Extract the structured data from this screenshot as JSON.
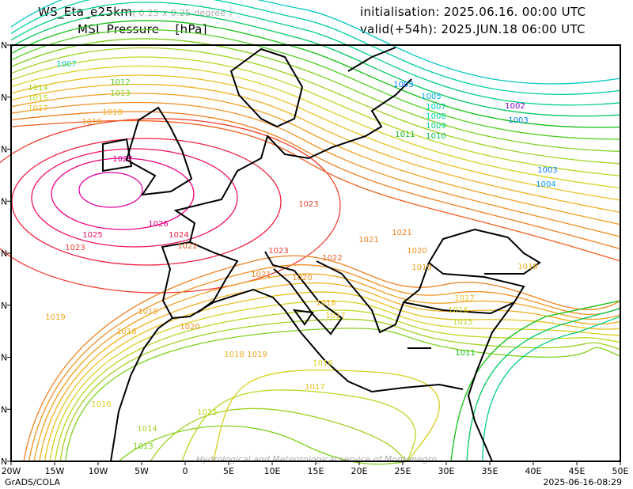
{
  "header": {
    "model": "WS_Eta_e25km",
    "resolution": "( 0.25 x 0.25 degree )",
    "field": "MSL Pressure",
    "unit": "[hPa]",
    "init": "initialisation: 2025.06.16.   00:00 UTC",
    "valid": "valid(+54h): 2025.JUN.18 06:00 UTC"
  },
  "axes": {
    "lon_labels": [
      "20W",
      "15W",
      "10W",
      "5W",
      "0",
      "5E",
      "10E",
      "15E",
      "20E",
      "25E",
      "30E",
      "35E",
      "40E",
      "45E",
      "50E"
    ],
    "lat_labels": [
      "N",
      "N",
      "N",
      "N",
      "N",
      "N",
      "N",
      "N",
      "N"
    ]
  },
  "isobar_labels": [
    "1007",
    "1014",
    "1015",
    "1017",
    "1013",
    "1012",
    "1018",
    "1019",
    "1023",
    "1021",
    "1020",
    "1019",
    "1022",
    "1023",
    "1022",
    "1024",
    "1025",
    "1023",
    "1026",
    "1027",
    "1021",
    "1019",
    "1018",
    "1019",
    "1020",
    "1018",
    "1019",
    "1016",
    "1017",
    "1016",
    "1015",
    "1014",
    "1013",
    "1011",
    "1010",
    "1009",
    "1008",
    "1007",
    "1003",
    "1004",
    "1003",
    "1002",
    "1018",
    "1017",
    "1016",
    "1015",
    "1011",
    "1021",
    "1020",
    "1018",
    "1017",
    "1003",
    "1005"
  ],
  "watermark": "Hydrological and Meteorological service of Montenegro",
  "footer": {
    "left": "GrADS/COLA",
    "right": "2025-06-16-08:29"
  }
}
